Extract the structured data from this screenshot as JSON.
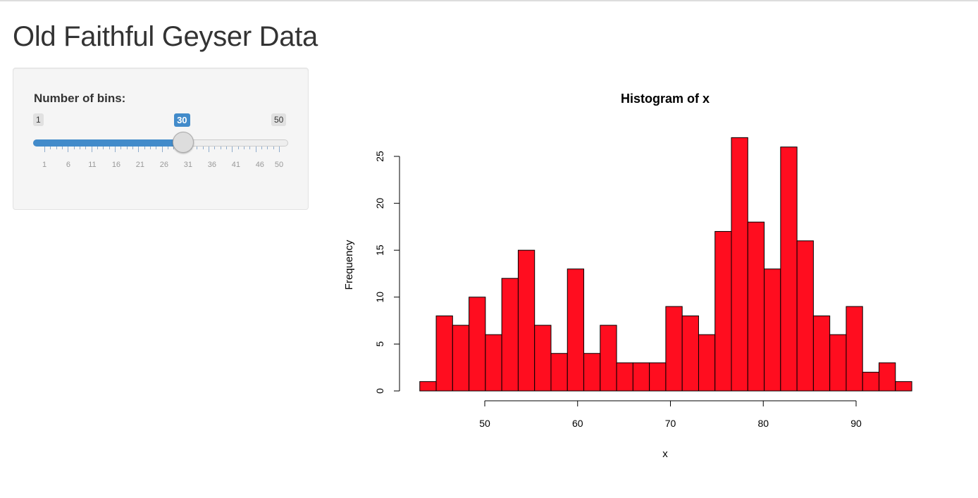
{
  "page": {
    "title": "Old Faithful Geyser Data"
  },
  "sidebar": {
    "slider": {
      "label": "Number of bins:",
      "min": 1,
      "max": 50,
      "value": 30,
      "min_label": "1",
      "max_label": "50",
      "value_label": "30",
      "tick_labels": [
        "1",
        "6",
        "11",
        "16",
        "21",
        "26",
        "31",
        "36",
        "41",
        "46",
        "50"
      ],
      "accent_color": "#428bca"
    }
  },
  "chart_data": {
    "type": "bar",
    "title": "Histogram of x",
    "xlabel": "x",
    "ylabel": "Frequency",
    "bin_range": [
      43,
      96
    ],
    "bin_count": 30,
    "values": [
      1,
      8,
      7,
      10,
      6,
      12,
      15,
      7,
      4,
      13,
      4,
      7,
      3,
      3,
      3,
      9,
      8,
      6,
      17,
      27,
      18,
      13,
      26,
      16,
      8,
      6,
      9,
      2,
      3,
      1
    ],
    "x_ticks": [
      "50",
      "60",
      "70",
      "80",
      "90"
    ],
    "y_ticks": [
      "0",
      "5",
      "10",
      "15",
      "20",
      "25"
    ],
    "ylim": [
      0,
      27
    ],
    "bar_color": "#ff0d1f",
    "grid": false,
    "legend": "none"
  }
}
